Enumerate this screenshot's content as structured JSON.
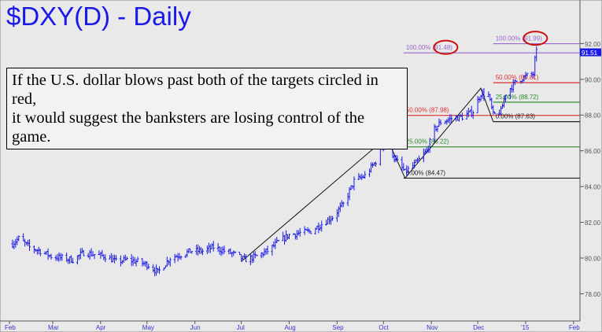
{
  "header": {
    "title": "$DXY(D) - Daily"
  },
  "annotation": {
    "line1": "If the U.S. dollar blows past both of the targets circled in red,",
    "line2": "it would suggest the banksters are losing control of the game."
  },
  "colors": {
    "price": "#1a1ae6",
    "fib100": "#9966cc",
    "fib50": "#e03030",
    "fib25": "#2e8b2e",
    "fib0": "#222222",
    "circle": "#cc1111",
    "badge": "#1a1ae6"
  },
  "chart_data": {
    "type": "ohlc-bar",
    "title": "$DXY(D) - Daily",
    "ylim": [
      77,
      93.5
    ],
    "yticks": [
      "78.00",
      "80.00",
      "82.00",
      "84.00",
      "86.00",
      "88.00",
      "90.00",
      "92.00"
    ],
    "xtick_labels": [
      {
        "date": "2014-02-01",
        "label": "Feb"
      },
      {
        "date": "2014-03-01",
        "label": "Mar"
      },
      {
        "date": "2014-04-01",
        "label": "Apr"
      },
      {
        "date": "2014-05-01",
        "label": "May"
      },
      {
        "date": "2014-06-01",
        "label": "Jun"
      },
      {
        "date": "2014-07-01",
        "label": "Jul"
      },
      {
        "date": "2014-08-01",
        "label": "Aug"
      },
      {
        "date": "2014-09-01",
        "label": "Sep"
      },
      {
        "date": "2014-10-01",
        "label": "Oct"
      },
      {
        "date": "2014-11-01",
        "label": "Nov"
      },
      {
        "date": "2014-12-01",
        "label": "Dec"
      },
      {
        "date": "2015-01-01",
        "label": "'15"
      },
      {
        "date": "2015-02-01",
        "label": "Feb"
      }
    ],
    "price_path": [
      [
        "2014-02-03",
        80.8
      ],
      [
        "2014-02-07",
        81.1
      ],
      [
        "2014-02-14",
        80.6
      ],
      [
        "2014-02-21",
        80.4
      ],
      [
        "2014-02-28",
        80.1
      ],
      [
        "2014-03-07",
        80.0
      ],
      [
        "2014-03-14",
        79.9
      ],
      [
        "2014-03-21",
        80.3
      ],
      [
        "2014-03-28",
        80.2
      ],
      [
        "2014-04-04",
        80.1
      ],
      [
        "2014-04-11",
        79.8
      ],
      [
        "2014-04-18",
        79.9
      ],
      [
        "2014-04-25",
        79.8
      ],
      [
        "2014-05-02",
        79.6
      ],
      [
        "2014-05-08",
        79.2
      ],
      [
        "2014-05-16",
        80.0
      ],
      [
        "2014-05-23",
        80.2
      ],
      [
        "2014-05-30",
        80.4
      ],
      [
        "2014-06-06",
        80.4
      ],
      [
        "2014-06-13",
        80.6
      ],
      [
        "2014-06-20",
        80.4
      ],
      [
        "2014-06-27",
        80.2
      ],
      [
        "2014-07-03",
        79.9
      ],
      [
        "2014-07-11",
        80.1
      ],
      [
        "2014-07-18",
        80.4
      ],
      [
        "2014-07-25",
        80.9
      ],
      [
        "2014-08-01",
        81.3
      ],
      [
        "2014-08-08",
        81.4
      ],
      [
        "2014-08-15",
        81.5
      ],
      [
        "2014-08-22",
        81.9
      ],
      [
        "2014-08-29",
        82.3
      ],
      [
        "2014-09-05",
        83.0
      ],
      [
        "2014-09-12",
        84.3
      ],
      [
        "2014-09-19",
        84.6
      ],
      [
        "2014-09-26",
        85.4
      ],
      [
        "2014-10-03",
        86.7
      ],
      [
        "2014-10-08",
        85.6
      ],
      [
        "2014-10-15",
        84.8
      ],
      [
        "2014-10-22",
        85.3
      ],
      [
        "2014-10-29",
        86.0
      ],
      [
        "2014-11-03",
        87.2
      ],
      [
        "2014-11-07",
        87.6
      ],
      [
        "2014-11-14",
        87.8
      ],
      [
        "2014-11-21",
        87.9
      ],
      [
        "2014-11-28",
        88.2
      ],
      [
        "2014-12-03",
        89.2
      ],
      [
        "2014-12-08",
        89.1
      ],
      [
        "2014-12-11",
        88.0
      ],
      [
        "2014-12-16",
        88.2
      ],
      [
        "2014-12-19",
        89.2
      ],
      [
        "2014-12-26",
        89.9
      ],
      [
        "2015-01-02",
        90.2
      ],
      [
        "2015-01-06",
        90.3
      ],
      [
        "2015-01-07",
        91.1
      ],
      [
        "2015-01-08",
        91.5
      ]
    ],
    "swing_lines": [
      [
        "2014-07-01",
        79.8
      ],
      [
        "2014-10-03",
        86.75
      ],
      [
        "2014-10-15",
        84.47
      ],
      [
        "2014-10-22",
        85.2
      ],
      [
        "2014-12-03",
        89.5
      ],
      [
        "2014-12-11",
        87.63
      ]
    ],
    "fib_levels": [
      {
        "start": "2014-10-14",
        "label": "100.00% (91.48)",
        "value": 91.48,
        "color": "fib100",
        "circled": true
      },
      {
        "start": "2014-10-14",
        "label": "50.00% (87.98)",
        "value": 87.98,
        "color": "fib50"
      },
      {
        "start": "2014-10-14",
        "label": "25.00% (86.22)",
        "value": 86.22,
        "color": "fib25"
      },
      {
        "start": "2014-10-14",
        "label": "0.00% (84.47)",
        "value": 84.47,
        "color": "fib0"
      },
      {
        "start": "2014-12-11",
        "label": "100.00% (91.99)",
        "value": 91.99,
        "color": "fib100",
        "circled": true
      },
      {
        "start": "2014-12-11",
        "label": "50.00% (89.81)",
        "value": 89.81,
        "color": "fib50"
      },
      {
        "start": "2014-12-11",
        "label": "25.00% (88.72)",
        "value": 88.72,
        "color": "fib25"
      },
      {
        "start": "2014-12-11",
        "label": "0.00% (87.63)",
        "value": 87.63,
        "color": "fib0"
      }
    ],
    "last_price": "91.51"
  }
}
